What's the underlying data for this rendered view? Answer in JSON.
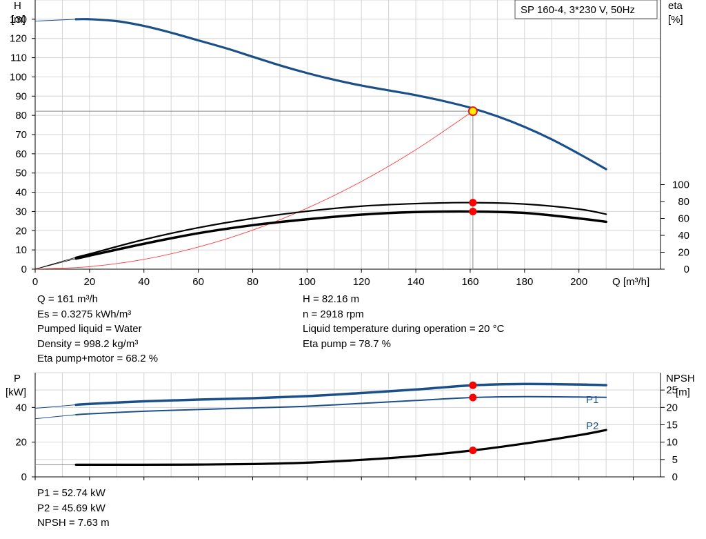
{
  "chart_data": [
    {
      "type": "line",
      "title": "SP 160-4, 3*230 V, 50Hz",
      "xlabel": "Q [m³/h]",
      "ylabel_left": [
        "H",
        "[m]"
      ],
      "ylabel_right": [
        "eta",
        "[%]"
      ],
      "xlim": [
        0,
        230
      ],
      "ylim_left": [
        0,
        140
      ],
      "ylim_right": [
        0,
        100
      ],
      "x_ticks": [
        "0",
        "20",
        "40",
        "60",
        "80",
        "100",
        "120",
        "140",
        "160",
        "180",
        "200"
      ],
      "y_ticks_left": [
        "0",
        "10",
        "20",
        "30",
        "40",
        "50",
        "60",
        "70",
        "80",
        "90",
        "100",
        "110",
        "120",
        "130"
      ],
      "y_ticks_right": [
        "0",
        "20",
        "40",
        "60",
        "80",
        "100"
      ],
      "grid": true,
      "series": [
        {
          "id": "H",
          "axis": "left",
          "color": "#1b4f8a",
          "x": [
            0,
            15,
            20,
            30,
            40,
            50,
            60,
            70,
            80,
            90,
            100,
            110,
            120,
            130,
            140,
            150,
            160,
            170,
            180,
            190,
            200,
            210
          ],
          "y": [
            129,
            130,
            130,
            129,
            126.5,
            123,
            119,
            115,
            110.5,
            106,
            102,
            98.5,
            95.5,
            93,
            90.5,
            87.5,
            84,
            79.5,
            74,
            67.5,
            60,
            52
          ]
        },
        {
          "id": "eta_pump",
          "axis": "right",
          "color": "#000000",
          "x": [
            0,
            15,
            20,
            40,
            60,
            80,
            100,
            120,
            140,
            160,
            180,
            200,
            210
          ],
          "y": [
            0,
            14,
            18,
            35,
            49,
            60,
            68.5,
            74.5,
            77.5,
            78.7,
            77,
            71,
            65
          ]
        },
        {
          "id": "eta_pump_motor",
          "axis": "right",
          "color": "#000000",
          "x": [
            0,
            15,
            20,
            40,
            60,
            80,
            100,
            120,
            140,
            160,
            180,
            200,
            210
          ],
          "y": [
            0,
            12.5,
            16,
            30,
            42.5,
            52,
            59,
            64.5,
            67.5,
            68.2,
            66.5,
            60,
            56
          ]
        },
        {
          "id": "system_curve",
          "axis": "left",
          "color": "#ff3a3a",
          "x": [
            0,
            20,
            40,
            60,
            80,
            100,
            120,
            140,
            161
          ],
          "y": [
            0,
            1.3,
            5.1,
            11.5,
            20.3,
            31.7,
            45.6,
            62.1,
            82.2
          ]
        }
      ],
      "reference_point": {
        "x": 161,
        "y": 82.16
      },
      "marker_points_right": [
        78.7,
        68.2
      ],
      "info": {
        "left": [
          "Q = 161 m³/h",
          "Es = 0.3275 kWh/m³",
          "Pumped liquid = Water",
          "Density = 998.2 kg/m³",
          "Eta pump+motor = 68.2 %"
        ],
        "right": [
          "H = 82.16 m",
          "n = 2918 rpm",
          "Liquid temperature during operation = 20 °C",
          "Eta pump = 78.7 %"
        ]
      }
    },
    {
      "type": "line",
      "ylabel_left": [
        "P",
        "[kW]"
      ],
      "ylabel_right": [
        "NPSH",
        "[m]"
      ],
      "xlim": [
        0,
        230
      ],
      "ylim_left": [
        0,
        60
      ],
      "ylim_right": [
        0,
        30
      ],
      "y_ticks_left": [
        "0",
        "20",
        "40"
      ],
      "y_ticks_right": [
        "0",
        "5",
        "10",
        "15",
        "20",
        "25"
      ],
      "grid": true,
      "series": [
        {
          "id": "P1",
          "name": "P1",
          "axis": "left",
          "color": "#1b4f8a",
          "x": [
            0,
            15,
            20,
            40,
            60,
            80,
            100,
            120,
            140,
            161,
            180,
            200,
            210
          ],
          "y": [
            39.5,
            41.5,
            42,
            43.5,
            44.5,
            45.3,
            46.5,
            48.3,
            50.3,
            52.74,
            53.5,
            53.2,
            52.8
          ]
        },
        {
          "id": "P2",
          "name": "P2",
          "axis": "left",
          "color": "#1b4f8a",
          "x": [
            0,
            15,
            20,
            40,
            60,
            80,
            100,
            120,
            140,
            161,
            180,
            200,
            210
          ],
          "y": [
            33.5,
            35.8,
            36.3,
            37.8,
            38.8,
            39.7,
            40.7,
            42.3,
            44,
            45.69,
            46.2,
            46,
            45.8
          ]
        },
        {
          "id": "NPSH",
          "axis": "right",
          "color": "#000000",
          "x": [
            0,
            15,
            40,
            60,
            80,
            100,
            120,
            140,
            161,
            180,
            200,
            210
          ],
          "y": [
            3.5,
            3.5,
            3.5,
            3.55,
            3.7,
            4.1,
            4.9,
            6,
            7.63,
            9.6,
            12,
            13.5
          ]
        }
      ],
      "marker_points": [
        {
          "axis": "left",
          "x": 161,
          "y": 52.74
        },
        {
          "axis": "left",
          "x": 161,
          "y": 45.69
        },
        {
          "axis": "right",
          "x": 161,
          "y": 7.63
        }
      ],
      "info": {
        "left": [
          "P1 = 52.74 kW",
          "P2 = 45.69 kW",
          "NPSH = 7.63 m"
        ]
      }
    }
  ]
}
